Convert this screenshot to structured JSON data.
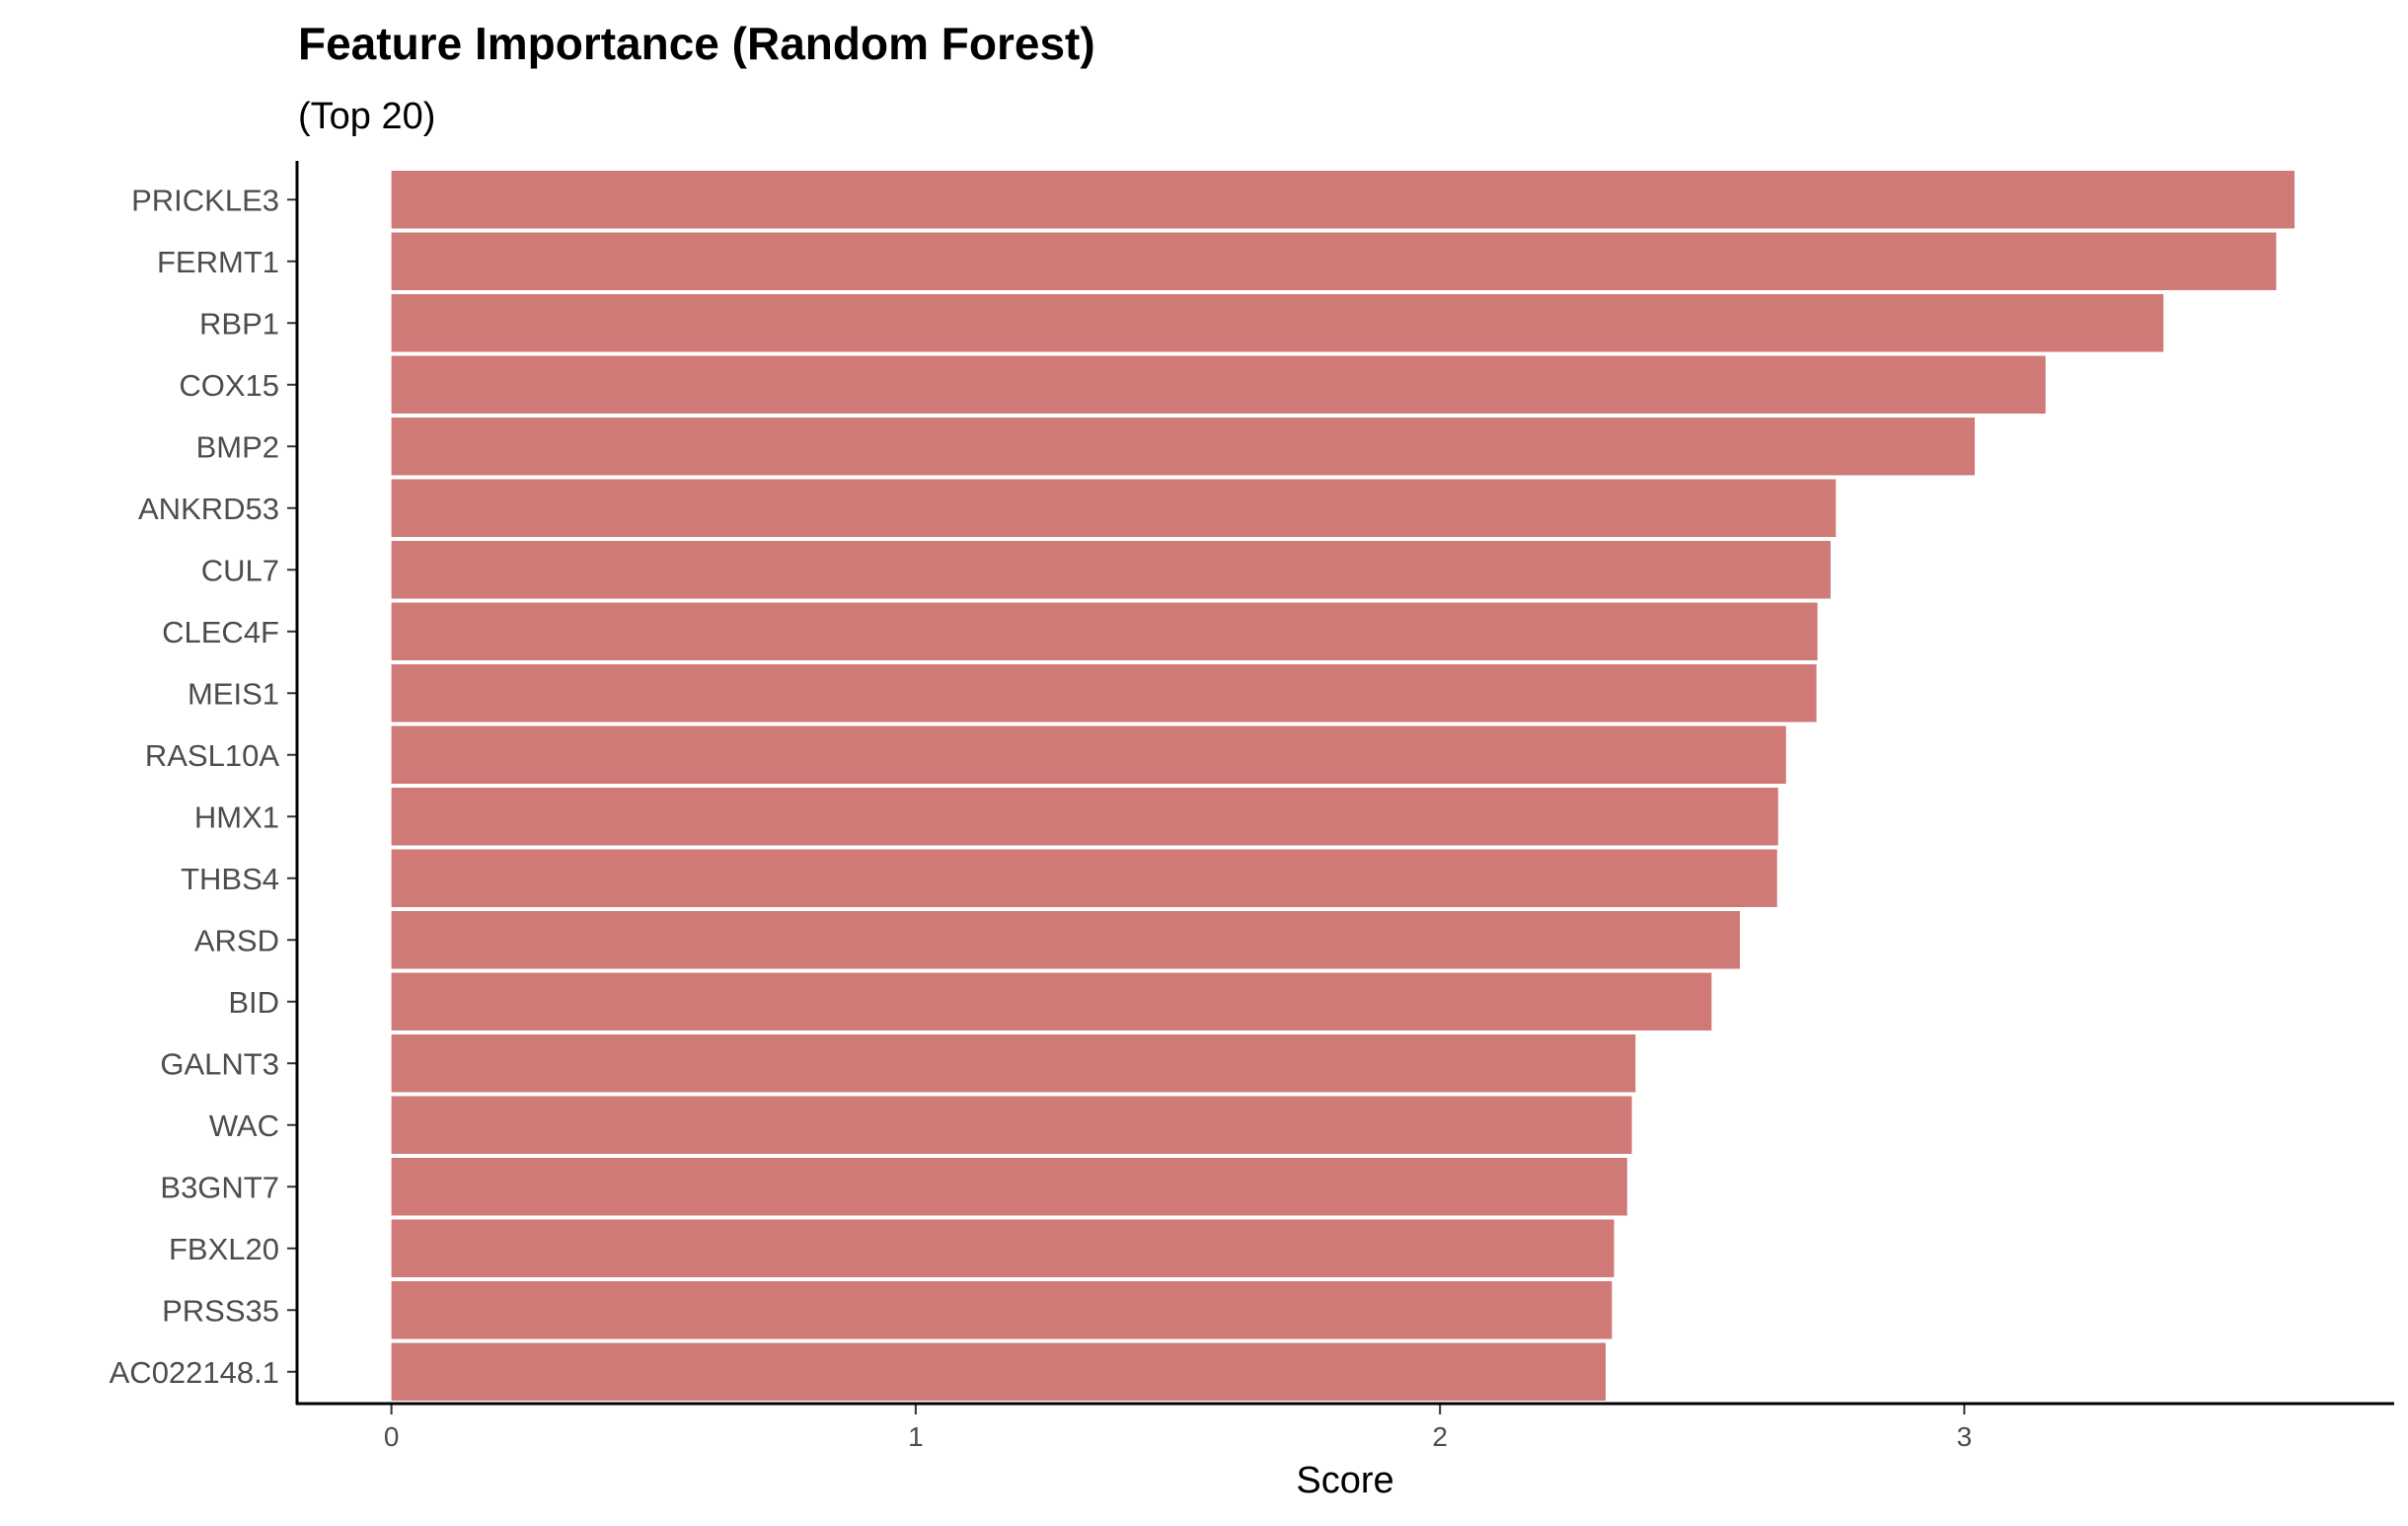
{
  "chart_data": {
    "type": "bar",
    "orientation": "horizontal",
    "title": "Feature Importance (Random Forest)",
    "subtitle": "(Top 20)",
    "xlabel": "Score",
    "ylabel": "",
    "categories": [
      "PRICKLE3",
      "FERMT1",
      "RBP1",
      "COX15",
      "BMP2",
      "ANKRD53",
      "CUL7",
      "CLEC4F",
      "MEIS1",
      "RASL10A",
      "HMX1",
      "THBS4",
      "ARSD",
      "BID",
      "GALNT3",
      "WAC",
      "B3GNT7",
      "FBXL20",
      "PRSS35",
      "AC022148.1"
    ],
    "values": [
      3.63,
      3.595,
      3.38,
      3.155,
      3.02,
      2.755,
      2.745,
      2.72,
      2.718,
      2.66,
      2.645,
      2.643,
      2.572,
      2.518,
      2.373,
      2.366,
      2.357,
      2.332,
      2.328,
      2.316
    ],
    "xticks": [
      "0",
      "1",
      "2",
      "3"
    ],
    "xlim": [
      -0.18,
      3.82
    ],
    "bar_color": "#d07a78",
    "grid": false,
    "legend": "none"
  }
}
